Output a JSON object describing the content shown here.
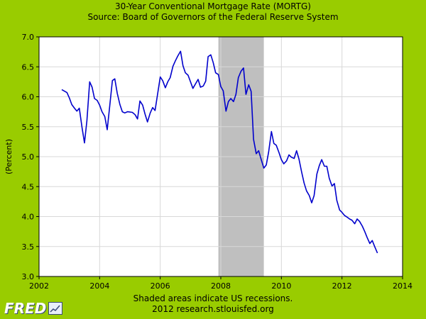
{
  "chart_data": {
    "type": "line",
    "title": "30-Year Conventional Mortgage Rate (MORTG)",
    "subtitle": "Source: Board of Governors of the Federal Reserve System",
    "xlabel": "",
    "ylabel": "(Percent)",
    "xlim": [
      2002,
      2014
    ],
    "ylim": [
      3.0,
      7.0
    ],
    "x_ticks": [
      "2002",
      "2004",
      "2006",
      "2008",
      "2010",
      "2012",
      "2014"
    ],
    "y_ticks": [
      "3.0",
      "3.5",
      "4.0",
      "4.5",
      "5.0",
      "5.5",
      "6.0",
      "6.5",
      "7.0"
    ],
    "grid": true,
    "recessions": [
      {
        "start": 2007.92,
        "end": 2009.42
      }
    ],
    "series": [
      {
        "color": "#0000cc",
        "points": [
          [
            2002.75,
            6.12
          ],
          [
            2002.92,
            6.07
          ],
          [
            2003.0,
            5.98
          ],
          [
            2003.08,
            5.87
          ],
          [
            2003.17,
            5.81
          ],
          [
            2003.25,
            5.76
          ],
          [
            2003.33,
            5.81
          ],
          [
            2003.42,
            5.48
          ],
          [
            2003.5,
            5.23
          ],
          [
            2003.58,
            5.6
          ],
          [
            2003.67,
            6.25
          ],
          [
            2003.75,
            6.16
          ],
          [
            2003.83,
            5.97
          ],
          [
            2003.92,
            5.94
          ],
          [
            2004.0,
            5.86
          ],
          [
            2004.08,
            5.75
          ],
          [
            2004.17,
            5.67
          ],
          [
            2004.25,
            5.45
          ],
          [
            2004.33,
            5.83
          ],
          [
            2004.42,
            6.27
          ],
          [
            2004.5,
            6.3
          ],
          [
            2004.58,
            6.06
          ],
          [
            2004.67,
            5.87
          ],
          [
            2004.75,
            5.75
          ],
          [
            2004.83,
            5.73
          ],
          [
            2004.92,
            5.75
          ],
          [
            2005.08,
            5.74
          ],
          [
            2005.17,
            5.7
          ],
          [
            2005.25,
            5.63
          ],
          [
            2005.33,
            5.93
          ],
          [
            2005.42,
            5.86
          ],
          [
            2005.5,
            5.71
          ],
          [
            2005.58,
            5.58
          ],
          [
            2005.67,
            5.73
          ],
          [
            2005.75,
            5.82
          ],
          [
            2005.83,
            5.77
          ],
          [
            2005.92,
            6.07
          ],
          [
            2006.0,
            6.33
          ],
          [
            2006.08,
            6.27
          ],
          [
            2006.17,
            6.15
          ],
          [
            2006.25,
            6.25
          ],
          [
            2006.33,
            6.32
          ],
          [
            2006.42,
            6.51
          ],
          [
            2006.5,
            6.6
          ],
          [
            2006.58,
            6.68
          ],
          [
            2006.67,
            6.76
          ],
          [
            2006.75,
            6.52
          ],
          [
            2006.83,
            6.4
          ],
          [
            2006.92,
            6.36
          ],
          [
            2007.0,
            6.25
          ],
          [
            2007.08,
            6.14
          ],
          [
            2007.17,
            6.22
          ],
          [
            2007.25,
            6.29
          ],
          [
            2007.33,
            6.16
          ],
          [
            2007.42,
            6.18
          ],
          [
            2007.5,
            6.26
          ],
          [
            2007.58,
            6.67
          ],
          [
            2007.67,
            6.7
          ],
          [
            2007.75,
            6.57
          ],
          [
            2007.83,
            6.4
          ],
          [
            2007.92,
            6.37
          ],
          [
            2008.0,
            6.17
          ],
          [
            2008.08,
            6.1
          ],
          [
            2008.17,
            5.76
          ],
          [
            2008.25,
            5.92
          ],
          [
            2008.33,
            5.97
          ],
          [
            2008.42,
            5.92
          ],
          [
            2008.5,
            6.04
          ],
          [
            2008.58,
            6.32
          ],
          [
            2008.67,
            6.43
          ],
          [
            2008.75,
            6.48
          ],
          [
            2008.83,
            6.04
          ],
          [
            2008.92,
            6.2
          ],
          [
            2009.0,
            6.09
          ],
          [
            2009.08,
            5.29
          ],
          [
            2009.17,
            5.05
          ],
          [
            2009.25,
            5.1
          ],
          [
            2009.33,
            4.96
          ],
          [
            2009.42,
            4.81
          ],
          [
            2009.5,
            4.86
          ],
          [
            2009.58,
            5.08
          ],
          [
            2009.67,
            5.42
          ],
          [
            2009.75,
            5.22
          ],
          [
            2009.83,
            5.19
          ],
          [
            2009.92,
            5.07
          ],
          [
            2010.0,
            4.95
          ],
          [
            2010.08,
            4.88
          ],
          [
            2010.17,
            4.93
          ],
          [
            2010.25,
            5.03
          ],
          [
            2010.33,
            4.99
          ],
          [
            2010.42,
            4.97
          ],
          [
            2010.5,
            5.1
          ],
          [
            2010.58,
            4.96
          ],
          [
            2010.67,
            4.74
          ],
          [
            2010.75,
            4.56
          ],
          [
            2010.83,
            4.43
          ],
          [
            2010.92,
            4.35
          ],
          [
            2011.0,
            4.23
          ],
          [
            2011.08,
            4.35
          ],
          [
            2011.17,
            4.71
          ],
          [
            2011.25,
            4.85
          ],
          [
            2011.33,
            4.95
          ],
          [
            2011.42,
            4.84
          ],
          [
            2011.5,
            4.84
          ],
          [
            2011.58,
            4.64
          ],
          [
            2011.67,
            4.51
          ],
          [
            2011.75,
            4.55
          ],
          [
            2011.83,
            4.27
          ],
          [
            2011.92,
            4.11
          ],
          [
            2012.0,
            4.07
          ],
          [
            2012.08,
            4.02
          ],
          [
            2012.17,
            3.99
          ],
          [
            2012.25,
            3.96
          ],
          [
            2012.33,
            3.94
          ],
          [
            2012.42,
            3.88
          ],
          [
            2012.5,
            3.96
          ],
          [
            2012.58,
            3.92
          ],
          [
            2012.67,
            3.84
          ],
          [
            2012.75,
            3.75
          ],
          [
            2012.83,
            3.65
          ],
          [
            2012.92,
            3.55
          ],
          [
            2013.0,
            3.6
          ],
          [
            2013.08,
            3.5
          ],
          [
            2013.17,
            3.39
          ]
        ]
      }
    ]
  },
  "footer": {
    "line1": "Shaded areas indicate US recessions.",
    "line2": "2012 research.stlouisfed.org"
  },
  "logo": {
    "text": "FRED"
  },
  "colors": {
    "background": "#99cc00",
    "plot_bg": "#ffffff",
    "recession": "#bfbfbf",
    "line": "#0000cc",
    "grid": "#d8d8d8"
  }
}
